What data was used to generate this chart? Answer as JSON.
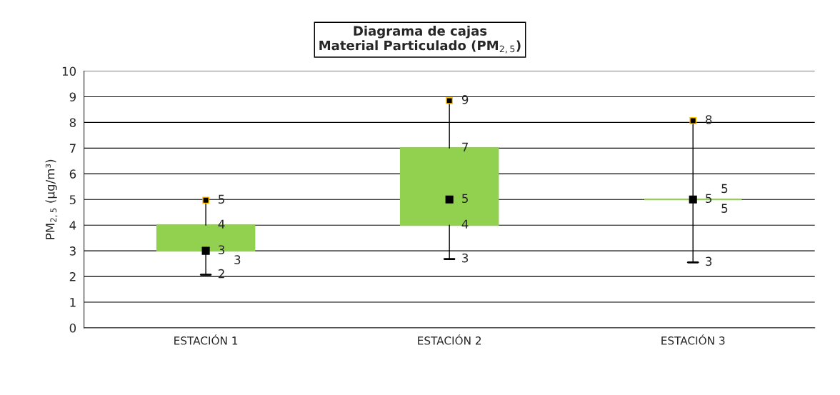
{
  "chart_data": {
    "type": "box",
    "title": "Diagrama de cajas\nMaterial Particulado (PM$_{2,5}$)",
    "ylabel": "PM$_{2,5}$ (µg/m³)",
    "categories": [
      "ESTACIÓN 1",
      "ESTACIÓN 2",
      "ESTACIÓN 3"
    ],
    "boxes": [
      {
        "low": 2.07,
        "q1": 3,
        "median": 3,
        "q3": 4,
        "high": 4.97
      },
      {
        "low": 2.68,
        "q1": 4,
        "median": 5,
        "q3": 7,
        "high": 8.85
      },
      {
        "low": 2.55,
        "q1": 5,
        "median": 5,
        "q3": 5,
        "high": 8.07
      }
    ],
    "color": "#92d050",
    "ylim": [
      0,
      10
    ],
    "yticks": [
      0,
      1,
      2,
      3,
      4,
      5,
      6,
      7,
      8,
      9,
      10
    ],
    "grid": "y",
    "annotations": [
      {
        "text": "5",
        "x": "ESTACIÓN 1",
        "y": 4.97
      },
      {
        "text": "4",
        "x": "ESTACIÓN 1",
        "y": 4
      },
      {
        "text": "3",
        "x": "ESTACIÓN 1",
        "y": 3
      },
      {
        "text": "3",
        "x": "ESTACIÓN 1",
        "y": 3
      },
      {
        "text": "2",
        "x": "ESTACIÓN 1",
        "y": 2.07
      },
      {
        "text": "9",
        "x": "ESTACIÓN 2",
        "y": 8.85
      },
      {
        "text": "7",
        "x": "ESTACIÓN 2",
        "y": 7
      },
      {
        "text": "5",
        "x": "ESTACIÓN 2",
        "y": 5
      },
      {
        "text": "4",
        "x": "ESTACIÓN 2",
        "y": 4
      },
      {
        "text": "3",
        "x": "ESTACIÓN 2",
        "y": 2.68
      },
      {
        "text": "8",
        "x": "ESTACIÓN 3",
        "y": 8.07
      },
      {
        "text": "5",
        "x": "ESTACIÓN 3",
        "y": 5
      },
      {
        "text": "5",
        "x": "ESTACIÓN 3",
        "y": 5
      },
      {
        "text": "5",
        "x": "ESTACIÓN 3",
        "y": 5
      },
      {
        "text": "3",
        "x": "ESTACIÓN 3",
        "y": 2.55
      }
    ]
  }
}
